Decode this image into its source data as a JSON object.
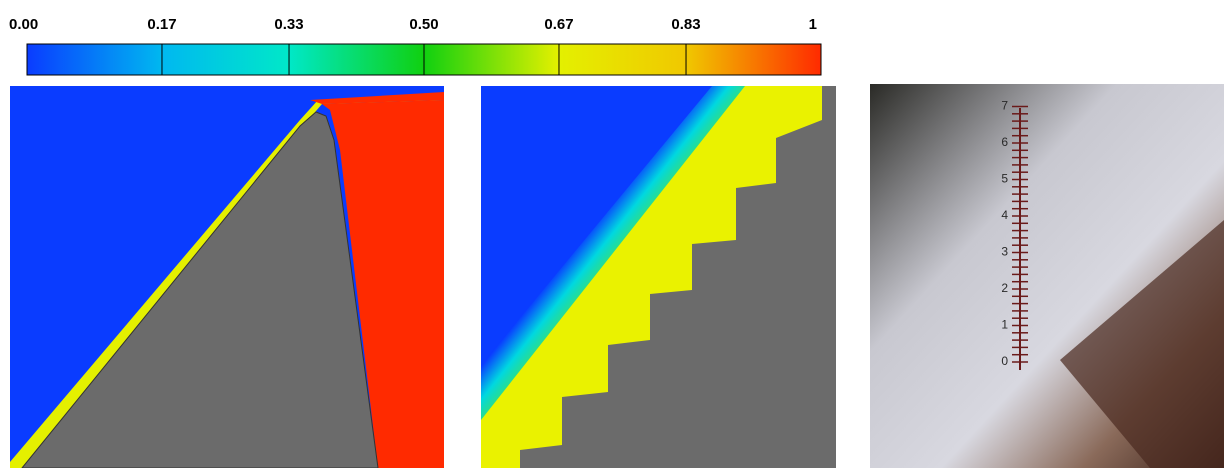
{
  "colorbar": {
    "ticks": [
      {
        "value": 0,
        "label": "0.00"
      },
      {
        "value": 0.17,
        "label": "0.17"
      },
      {
        "value": 0.33,
        "label": "0.33"
      },
      {
        "value": 0.5,
        "label": "0.50"
      },
      {
        "value": 0.67,
        "label": "0.67"
      },
      {
        "value": 0.83,
        "label": "0.83"
      },
      1
    ]
  },
  "photo": {
    "scale_labels": [
      "0",
      "1",
      "2",
      "3",
      "4",
      "5",
      "6",
      "7"
    ]
  }
}
